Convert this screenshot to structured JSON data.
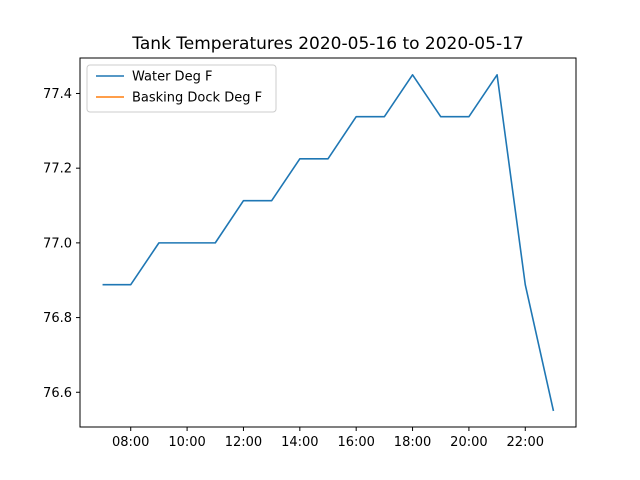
{
  "chart_data": {
    "type": "line",
    "title": "Tank Temperatures 2020-05-16 to 2020-05-17",
    "xlabel": "",
    "ylabel": "",
    "x_ticks": [
      "08:00",
      "10:00",
      "12:00",
      "14:00",
      "16:00",
      "18:00",
      "20:00",
      "22:00"
    ],
    "x_tick_values": [
      8,
      10,
      12,
      14,
      16,
      18,
      20,
      22
    ],
    "xlim": [
      6.2,
      23.8
    ],
    "y_ticks": [
      "76.6",
      "76.8",
      "77.0",
      "77.2",
      "77.4"
    ],
    "y_tick_values": [
      76.6,
      76.8,
      77.0,
      77.2,
      77.4
    ],
    "ylim": [
      76.507,
      77.495
    ],
    "grid": false,
    "legend_position": "upper-left",
    "series": [
      {
        "name": "Water Deg F",
        "color": "#1f77b4",
        "x": [
          7,
          8,
          9,
          10,
          11,
          12,
          13,
          14,
          15,
          16,
          17,
          18,
          19,
          20,
          21,
          22,
          23
        ],
        "y": [
          76.888,
          76.888,
          77.0,
          77.0,
          77.0,
          77.113,
          77.113,
          77.225,
          77.225,
          77.338,
          77.338,
          77.45,
          77.338,
          77.338,
          77.45,
          76.888,
          76.55
        ]
      },
      {
        "name": "Basking Dock Deg F",
        "color": "#ff7f0e",
        "x": [],
        "y": []
      }
    ]
  }
}
